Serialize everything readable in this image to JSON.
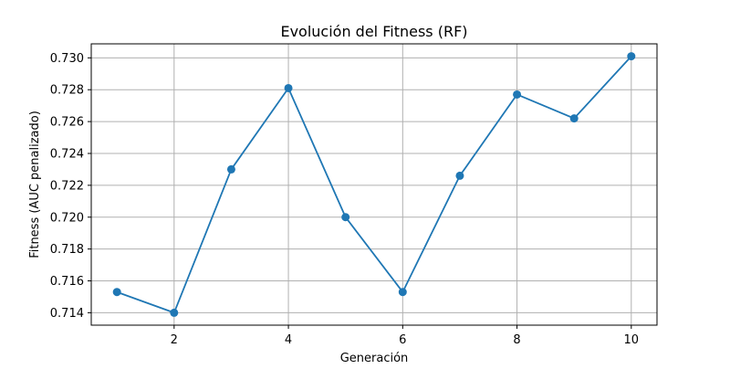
{
  "chart_data": {
    "type": "line",
    "title": "Evolución del Fitness (RF)",
    "xlabel": "Generación",
    "ylabel": "Fitness (AUC penalizado)",
    "xlim": [
      0.55,
      10.45
    ],
    "ylim": [
      0.71322,
      0.73088
    ],
    "xticks": [
      2,
      4,
      6,
      8,
      10
    ],
    "yticks": [
      0.714,
      0.716,
      0.718,
      0.72,
      0.722,
      0.724,
      0.726,
      0.728,
      0.73
    ],
    "ytick_labels": [
      "0.714",
      "0.716",
      "0.718",
      "0.720",
      "0.722",
      "0.724",
      "0.726",
      "0.728",
      "0.730"
    ],
    "grid": true,
    "marker": "circle",
    "color": "#1f77b4",
    "series": [
      {
        "x": [
          1,
          2,
          3,
          4,
          5,
          6,
          7,
          8,
          9,
          10
        ],
        "values": [
          0.7153,
          0.714,
          0.723,
          0.7281,
          0.72,
          0.7153,
          0.7226,
          0.7277,
          0.7262,
          0.7301
        ]
      }
    ]
  }
}
